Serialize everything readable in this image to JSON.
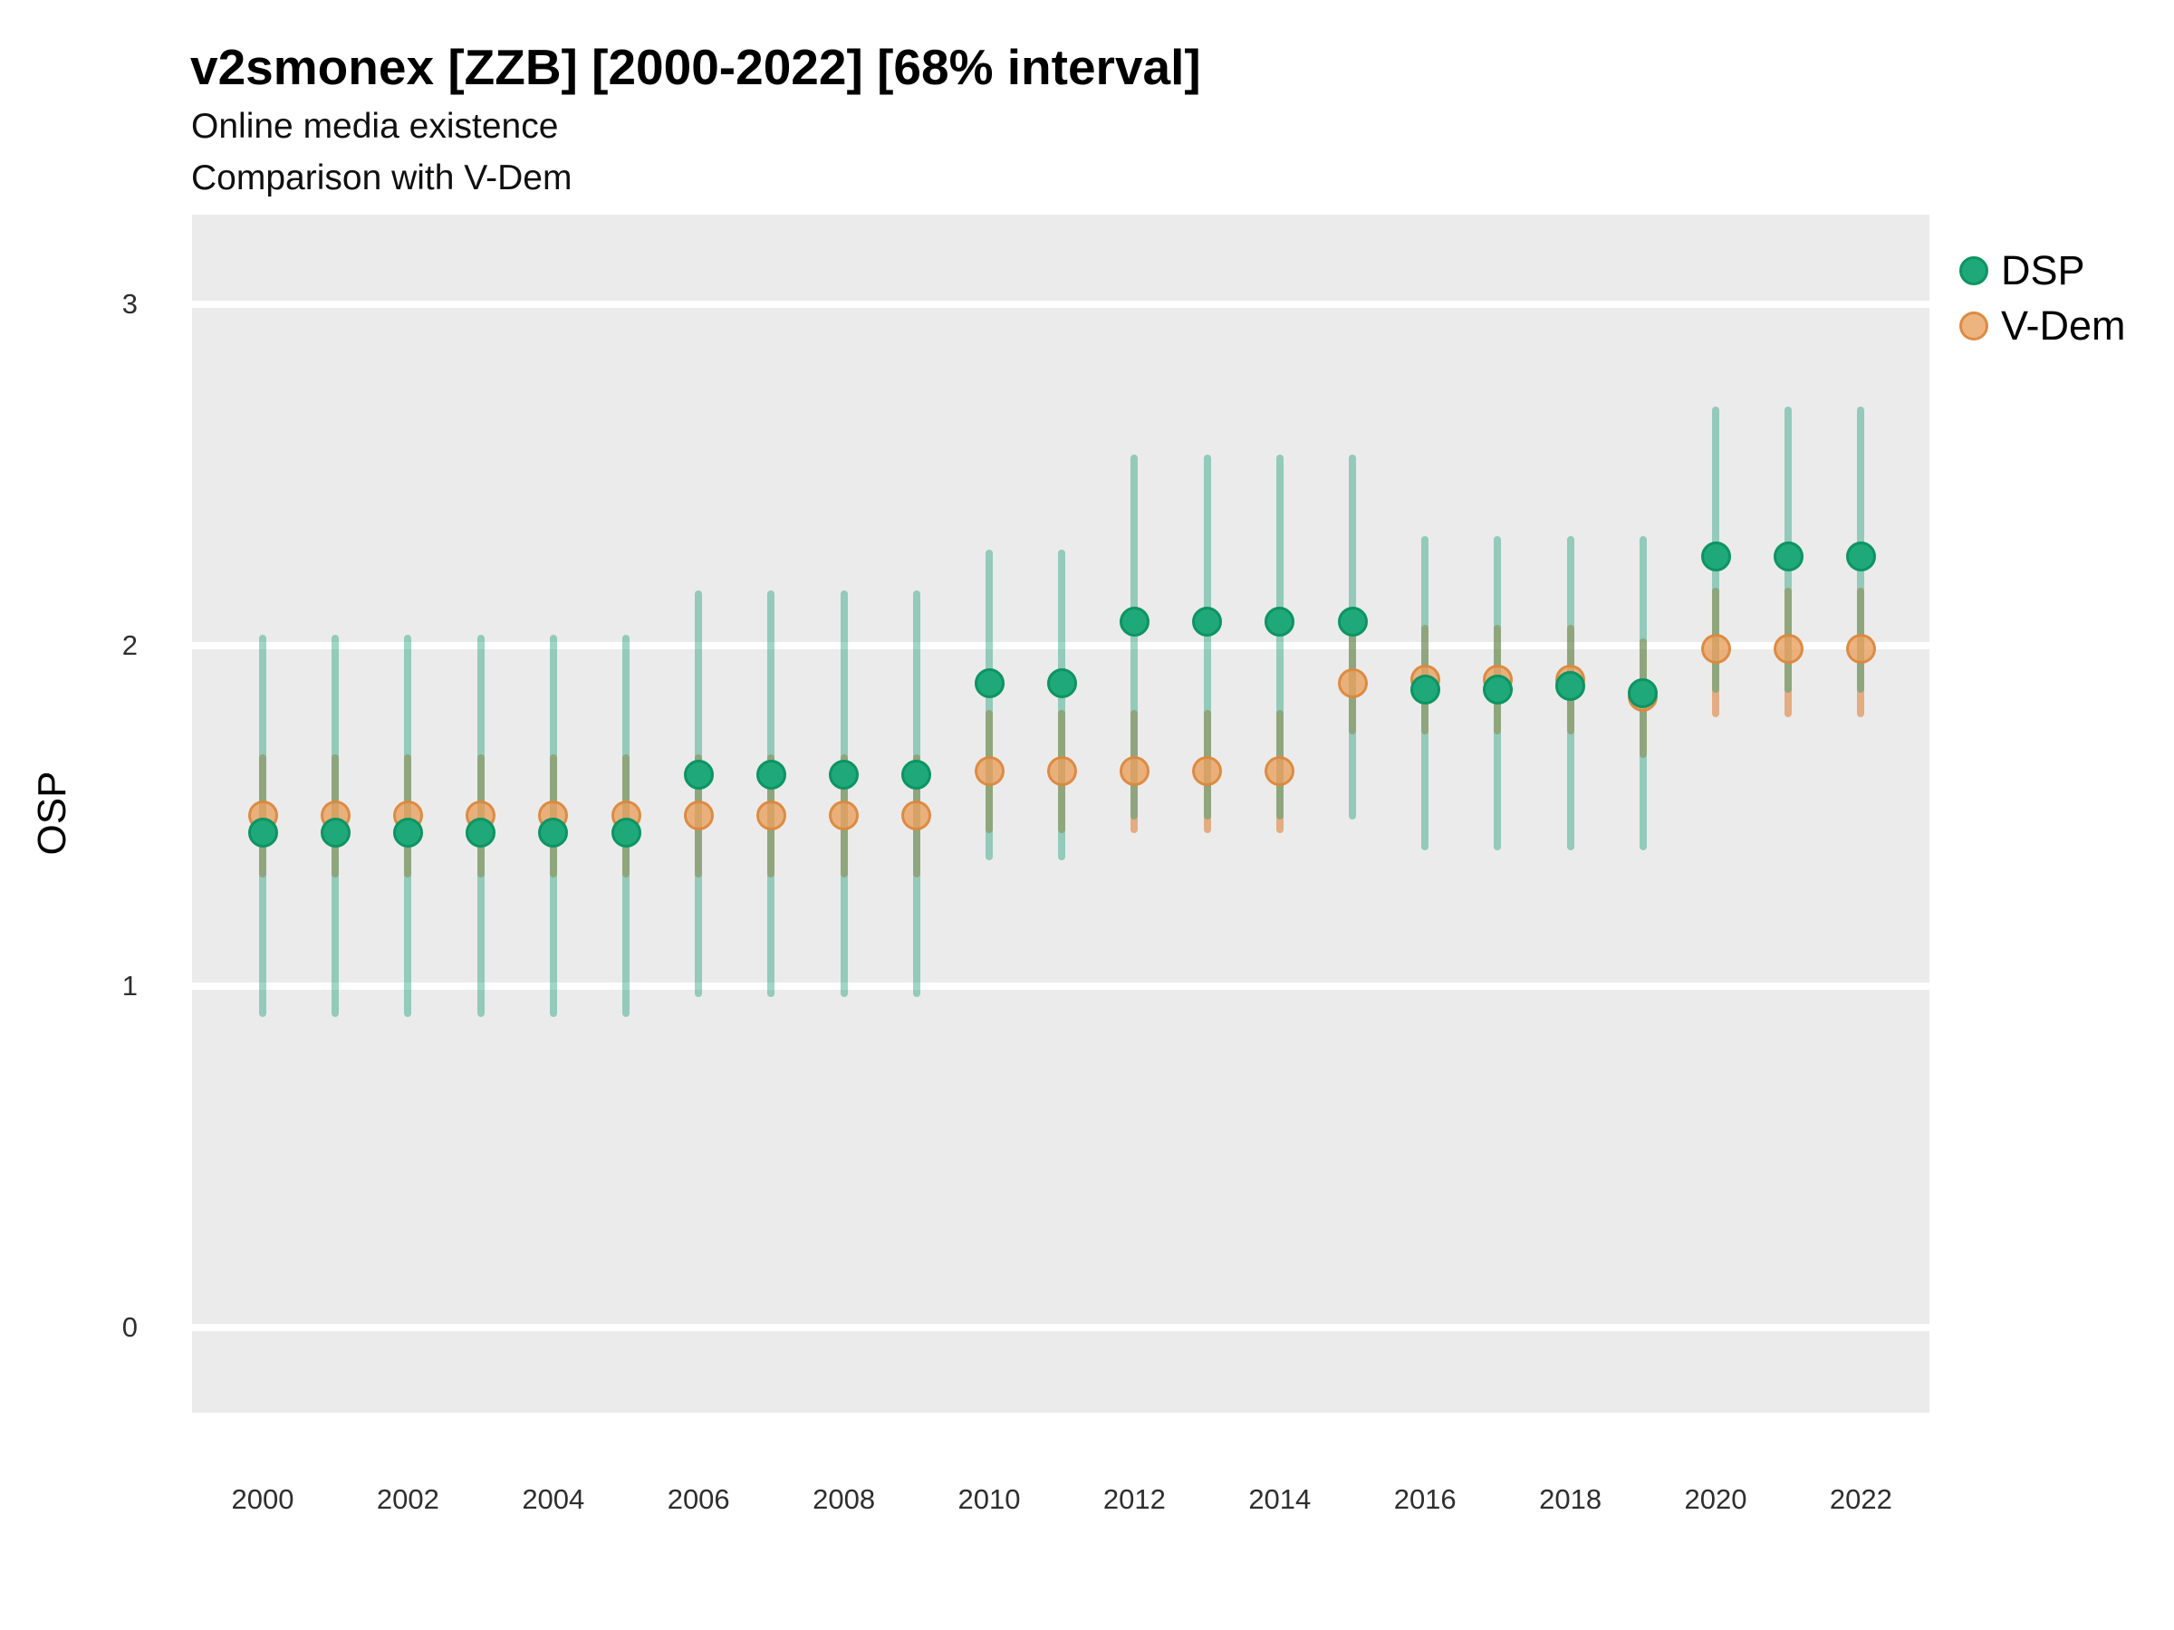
{
  "colors": {
    "page_bg": "#FFFFFF",
    "panel_bg": "#EBEBEB",
    "grid": "#FFFFFF",
    "dsp_point": "#1FA879",
    "dsp_point_stroke": "#0D9463",
    "dsp_interval": "rgba(27,158,119,0.42)",
    "vdem_point": "rgba(233,161,96,0.80)",
    "vdem_point_stroke": "rgba(219,133,58,0.85)",
    "vdem_interval": "rgba(217,95,2,0.45)",
    "title_text": "#000000",
    "tick_text": "#2E2E2E"
  },
  "chart_data": {
    "type": "scatter",
    "subtype": "pointrange",
    "title": "v2smonex [ZZB] [2000-2022] [68% interval]",
    "subtitle_line1": "Online media existence",
    "subtitle_line2": "Comparison with V-Dem",
    "xlabel": "",
    "ylabel": "OSP",
    "interval_label": "68% interval",
    "xlim": [
      1999,
      2023
    ],
    "ylim": [
      -0.25,
      3.25
    ],
    "yticks": [
      0,
      1,
      2,
      3
    ],
    "xticks": [
      2000,
      2002,
      2004,
      2006,
      2008,
      2010,
      2012,
      2014,
      2016,
      2018,
      2020,
      2022
    ],
    "grid": "major horizontal white lines on gray panel, no minor grid, no axis ticks",
    "legend": {
      "position": "right-top",
      "entries": [
        "DSP",
        "V-Dem"
      ]
    },
    "series": [
      {
        "name": "DSP",
        "points": [
          {
            "year": 2000,
            "value": 1.45,
            "lo": 0.91,
            "hi": 2.03
          },
          {
            "year": 2001,
            "value": 1.45,
            "lo": 0.91,
            "hi": 2.03
          },
          {
            "year": 2002,
            "value": 1.45,
            "lo": 0.91,
            "hi": 2.03
          },
          {
            "year": 2003,
            "value": 1.45,
            "lo": 0.91,
            "hi": 2.03
          },
          {
            "year": 2004,
            "value": 1.45,
            "lo": 0.91,
            "hi": 2.03
          },
          {
            "year": 2005,
            "value": 1.45,
            "lo": 0.91,
            "hi": 2.03
          },
          {
            "year": 2006,
            "value": 1.62,
            "lo": 0.97,
            "hi": 2.16
          },
          {
            "year": 2007,
            "value": 1.62,
            "lo": 0.97,
            "hi": 2.16
          },
          {
            "year": 2008,
            "value": 1.62,
            "lo": 0.97,
            "hi": 2.16
          },
          {
            "year": 2009,
            "value": 1.62,
            "lo": 0.97,
            "hi": 2.16
          },
          {
            "year": 2010,
            "value": 1.89,
            "lo": 1.37,
            "hi": 2.28
          },
          {
            "year": 2011,
            "value": 1.89,
            "lo": 1.37,
            "hi": 2.28
          },
          {
            "year": 2012,
            "value": 2.07,
            "lo": 1.49,
            "hi": 2.56
          },
          {
            "year": 2013,
            "value": 2.07,
            "lo": 1.49,
            "hi": 2.56
          },
          {
            "year": 2014,
            "value": 2.07,
            "lo": 1.49,
            "hi": 2.56
          },
          {
            "year": 2015,
            "value": 2.07,
            "lo": 1.49,
            "hi": 2.56
          },
          {
            "year": 2016,
            "value": 1.87,
            "lo": 1.4,
            "hi": 2.32
          },
          {
            "year": 2017,
            "value": 1.87,
            "lo": 1.4,
            "hi": 2.32
          },
          {
            "year": 2018,
            "value": 1.88,
            "lo": 1.4,
            "hi": 2.32
          },
          {
            "year": 2019,
            "value": 1.86,
            "lo": 1.4,
            "hi": 2.32
          },
          {
            "year": 2020,
            "value": 2.26,
            "lo": 1.86,
            "hi": 2.7
          },
          {
            "year": 2021,
            "value": 2.26,
            "lo": 1.86,
            "hi": 2.7
          },
          {
            "year": 2022,
            "value": 2.26,
            "lo": 1.86,
            "hi": 2.7
          }
        ]
      },
      {
        "name": "V-Dem",
        "points": [
          {
            "year": 2000,
            "value": 1.5,
            "lo": 1.32,
            "hi": 1.68
          },
          {
            "year": 2001,
            "value": 1.5,
            "lo": 1.32,
            "hi": 1.68
          },
          {
            "year": 2002,
            "value": 1.5,
            "lo": 1.32,
            "hi": 1.68
          },
          {
            "year": 2003,
            "value": 1.5,
            "lo": 1.32,
            "hi": 1.68
          },
          {
            "year": 2004,
            "value": 1.5,
            "lo": 1.32,
            "hi": 1.68
          },
          {
            "year": 2005,
            "value": 1.5,
            "lo": 1.32,
            "hi": 1.68
          },
          {
            "year": 2006,
            "value": 1.5,
            "lo": 1.32,
            "hi": 1.68
          },
          {
            "year": 2007,
            "value": 1.5,
            "lo": 1.32,
            "hi": 1.68
          },
          {
            "year": 2008,
            "value": 1.5,
            "lo": 1.32,
            "hi": 1.68
          },
          {
            "year": 2009,
            "value": 1.5,
            "lo": 1.32,
            "hi": 1.68
          },
          {
            "year": 2010,
            "value": 1.63,
            "lo": 1.45,
            "hi": 1.81
          },
          {
            "year": 2011,
            "value": 1.63,
            "lo": 1.45,
            "hi": 1.81
          },
          {
            "year": 2012,
            "value": 1.63,
            "lo": 1.45,
            "hi": 1.81
          },
          {
            "year": 2013,
            "value": 1.63,
            "lo": 1.45,
            "hi": 1.81
          },
          {
            "year": 2014,
            "value": 1.63,
            "lo": 1.45,
            "hi": 1.81
          },
          {
            "year": 2015,
            "value": 1.89,
            "lo": 1.74,
            "hi": 2.04
          },
          {
            "year": 2016,
            "value": 1.9,
            "lo": 1.74,
            "hi": 2.06
          },
          {
            "year": 2017,
            "value": 1.9,
            "lo": 1.74,
            "hi": 2.06
          },
          {
            "year": 2018,
            "value": 1.9,
            "lo": 1.74,
            "hi": 2.06
          },
          {
            "year": 2019,
            "value": 1.85,
            "lo": 1.67,
            "hi": 2.02
          },
          {
            "year": 2020,
            "value": 1.99,
            "lo": 1.79,
            "hi": 2.17
          },
          {
            "year": 2021,
            "value": 1.99,
            "lo": 1.79,
            "hi": 2.17
          },
          {
            "year": 2022,
            "value": 1.99,
            "lo": 1.79,
            "hi": 2.17
          }
        ]
      }
    ]
  }
}
